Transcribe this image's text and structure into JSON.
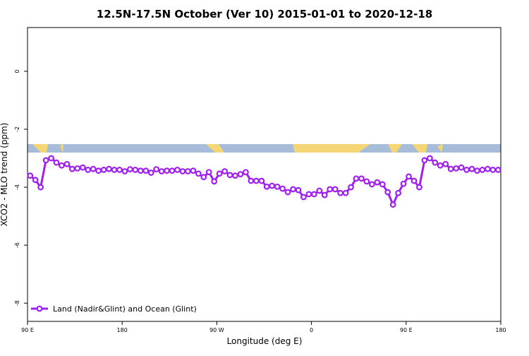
{
  "chart_data": {
    "type": "line",
    "title": "12.5N-17.5N October (Ver 10)   2015-01-01 to 2020-12-18",
    "x_label": "Longitude (deg E)",
    "y_label": "XCO2 - MLO trend (ppm)",
    "xlim": [
      90,
      540
    ],
    "xticks": [
      {
        "value": 90,
        "label": "90 E"
      },
      {
        "value": 180,
        "label": "180"
      },
      {
        "value": 270,
        "label": "90 W"
      },
      {
        "value": 360,
        "label": "0"
      },
      {
        "value": 450,
        "label": "90 E"
      },
      {
        "value": 540,
        "label": "180"
      }
    ],
    "ylim": [
      -8.63,
      1.51
    ],
    "yticks": [
      0,
      -2,
      -4,
      -6,
      -8
    ],
    "legend": "bottom-left",
    "x": [
      92.5,
      97.5,
      102.5,
      107.5,
      112.5,
      117.5,
      122.5,
      127.5,
      132.5,
      137.5,
      142.5,
      147.5,
      152.5,
      157.5,
      162.5,
      167.5,
      172.5,
      177.5,
      182.5,
      187.5,
      192.5,
      197.5,
      202.5,
      207.5,
      212.5,
      217.5,
      222.5,
      227.5,
      232.5,
      237.5,
      242.5,
      247.5,
      252.5,
      257.5,
      262.5,
      267.5,
      272.5,
      277.5,
      282.5,
      287.5,
      292.5,
      297.5,
      302.5,
      307.5,
      312.5,
      317.5,
      322.5,
      327.5,
      332.5,
      337.5,
      342.5,
      347.5,
      352.5,
      357.5,
      362.5,
      367.5,
      372.5,
      377.5,
      382.5,
      387.5,
      392.5,
      397.5,
      402.5,
      407.5,
      412.5,
      417.5,
      422.5,
      427.5,
      432.5,
      437.5,
      442.5,
      447.5,
      452.5,
      457.5,
      462.5,
      467.5,
      472.5,
      477.5,
      482.5,
      487.5,
      492.5,
      497.5,
      502.5,
      507.5,
      512.5,
      517.5,
      522.5,
      527.5,
      532.5,
      537.5
    ],
    "series": [
      {
        "name": "Land (Nadir&Glint) and Ocean (Glint)",
        "color": "#a020f0",
        "values": [
          -3.6,
          -3.75,
          -4.0,
          -3.07,
          -3.0,
          -3.15,
          -3.25,
          -3.2,
          -3.37,
          -3.35,
          -3.32,
          -3.4,
          -3.37,
          -3.43,
          -3.4,
          -3.37,
          -3.4,
          -3.4,
          -3.45,
          -3.38,
          -3.4,
          -3.43,
          -3.43,
          -3.5,
          -3.38,
          -3.45,
          -3.43,
          -3.43,
          -3.4,
          -3.45,
          -3.45,
          -3.43,
          -3.53,
          -3.65,
          -3.48,
          -3.8,
          -3.53,
          -3.45,
          -3.58,
          -3.6,
          -3.55,
          -3.48,
          -3.78,
          -3.78,
          -3.78,
          -3.98,
          -3.95,
          -3.98,
          -4.05,
          -4.17,
          -4.07,
          -4.1,
          -4.34,
          -4.24,
          -4.24,
          -4.12,
          -4.27,
          -4.07,
          -4.07,
          -4.2,
          -4.2,
          -4.0,
          -3.7,
          -3.7,
          -3.8,
          -3.9,
          -3.83,
          -3.9,
          -4.17,
          -4.6,
          -4.2,
          -3.88,
          -3.63,
          -3.78,
          -4.0,
          -3.07,
          -3.0,
          -3.15,
          -3.25,
          -3.2,
          -3.37,
          -3.35,
          -3.32,
          -3.4,
          -3.37,
          -3.43,
          -3.4,
          -3.37,
          -3.4,
          -3.4
        ]
      }
    ]
  }
}
